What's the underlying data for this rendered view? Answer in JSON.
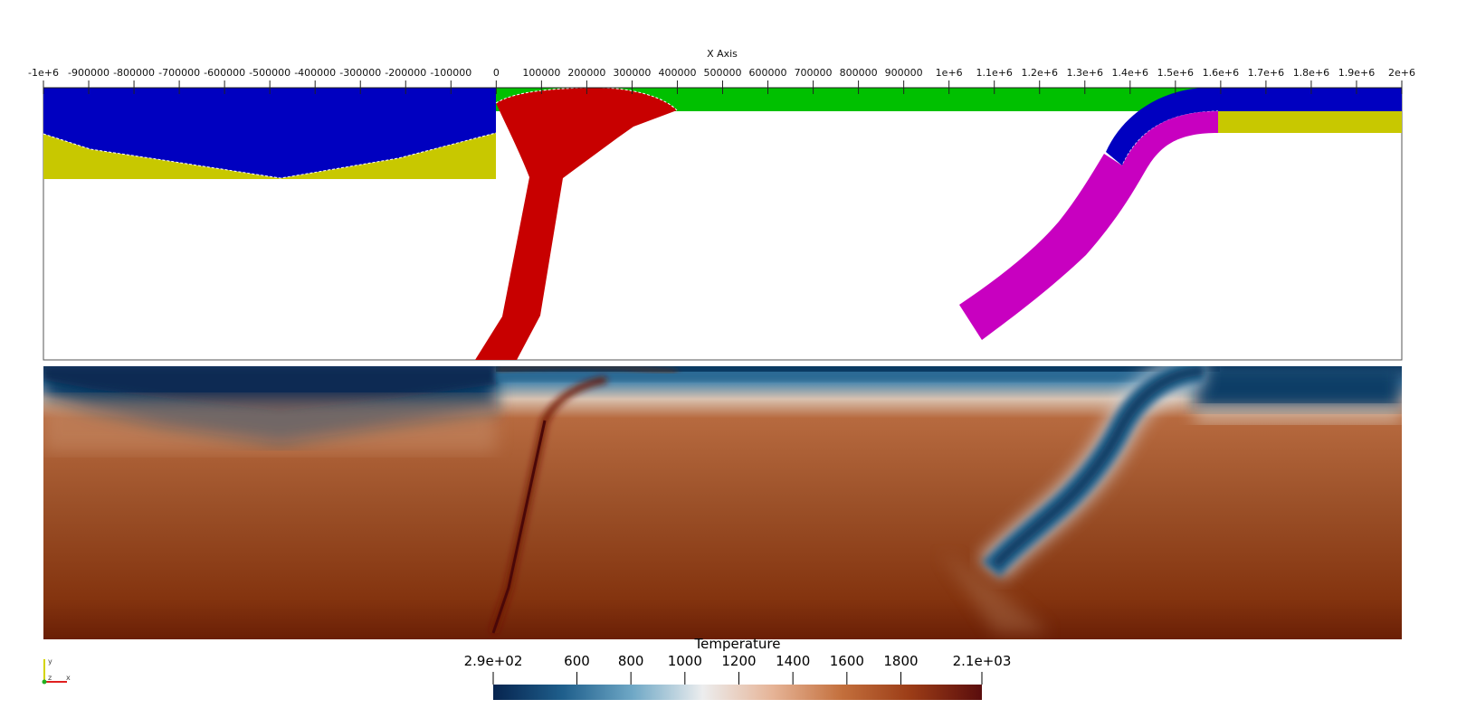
{
  "x_axis": {
    "title": "X Axis",
    "ticks": [
      {
        "value": -1000000,
        "label": "-1e+6"
      },
      {
        "value": -900000,
        "label": "-900000"
      },
      {
        "value": -800000,
        "label": "-800000"
      },
      {
        "value": -700000,
        "label": "-700000"
      },
      {
        "value": -600000,
        "label": "-600000"
      },
      {
        "value": -500000,
        "label": "-500000"
      },
      {
        "value": -400000,
        "label": "-400000"
      },
      {
        "value": -300000,
        "label": "-300000"
      },
      {
        "value": -200000,
        "label": "-200000"
      },
      {
        "value": -100000,
        "label": "-100000"
      },
      {
        "value": 0,
        "label": "0"
      },
      {
        "value": 100000,
        "label": "100000"
      },
      {
        "value": 200000,
        "label": "200000"
      },
      {
        "value": 300000,
        "label": "300000"
      },
      {
        "value": 400000,
        "label": "400000"
      },
      {
        "value": 500000,
        "label": "500000"
      },
      {
        "value": 600000,
        "label": "600000"
      },
      {
        "value": 700000,
        "label": "700000"
      },
      {
        "value": 800000,
        "label": "800000"
      },
      {
        "value": 900000,
        "label": "900000"
      },
      {
        "value": 1000000,
        "label": "1e+6"
      },
      {
        "value": 1100000,
        "label": "1.1e+6"
      },
      {
        "value": 1200000,
        "label": "1.2e+6"
      },
      {
        "value": 1300000,
        "label": "1.3e+6"
      },
      {
        "value": 1400000,
        "label": "1.4e+6"
      },
      {
        "value": 1500000,
        "label": "1.5e+6"
      },
      {
        "value": 1600000,
        "label": "1.6e+6"
      },
      {
        "value": 1700000,
        "label": "1.7e+6"
      },
      {
        "value": 1800000,
        "label": "1.8e+6"
      },
      {
        "value": 1900000,
        "label": "1.9e+6"
      },
      {
        "value": 2000000,
        "label": "2e+6"
      }
    ]
  },
  "colors": {
    "blue": "#0000c0",
    "yellow": "#c8c800",
    "green": "#00c000",
    "red": "#c80000",
    "magenta": "#c800c0"
  },
  "colorbar": {
    "title": "Temperature",
    "min_label": "2.9e+02",
    "max_label": "2.1e+03",
    "min": 290,
    "max": 2100,
    "ticks": [
      {
        "value": 600,
        "label": "600"
      },
      {
        "value": 800,
        "label": "800"
      },
      {
        "value": 1000,
        "label": "1000"
      },
      {
        "value": 1200,
        "label": "1200"
      },
      {
        "value": 1400,
        "label": "1400"
      },
      {
        "value": 1600,
        "label": "1600"
      },
      {
        "value": 1800,
        "label": "1800"
      }
    ],
    "gradient": [
      "#06244f",
      "#1f5f8c",
      "#6fa8c6",
      "#ecedee",
      "#e6b497",
      "#c36f3c",
      "#9a3b16",
      "#5a0d0d"
    ]
  },
  "orientation_axes": {
    "y_label": "y",
    "z_label": "z",
    "x_label": "x"
  }
}
